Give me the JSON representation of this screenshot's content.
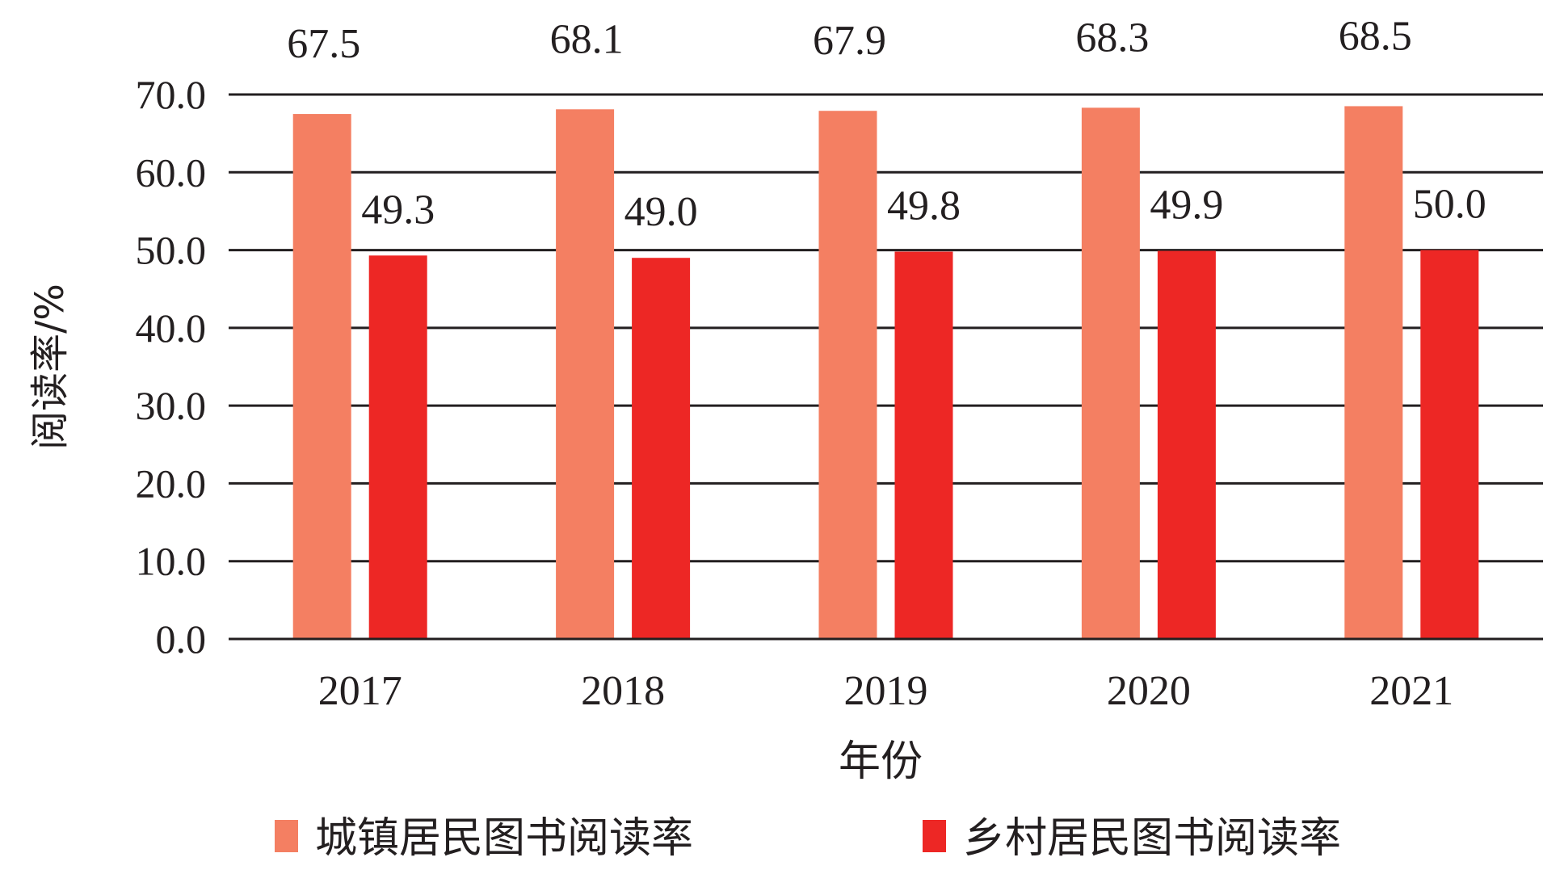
{
  "chart_data": {
    "type": "bar",
    "title": "",
    "xlabel": "年份",
    "ylabel": "阅读率/%",
    "categories": [
      "2017",
      "2018",
      "2019",
      "2020",
      "2021"
    ],
    "series": [
      {
        "name": "城镇居民图书阅读率",
        "color": "#f47f62",
        "values": [
          67.5,
          68.1,
          67.9,
          68.3,
          68.5
        ],
        "labels": [
          "67.5",
          "68.1",
          "67.9",
          "68.3",
          "68.5"
        ]
      },
      {
        "name": "乡村居民图书阅读率",
        "color": "#ed2725",
        "values": [
          49.3,
          49.0,
          49.8,
          49.9,
          50.0
        ],
        "labels": [
          "49.3",
          "49.0",
          "49.8",
          "49.9",
          "50.0"
        ]
      }
    ],
    "ylim": [
      0,
      70
    ],
    "yticks": [
      "0.0",
      "10.0",
      "20.0",
      "30.0",
      "40.0",
      "50.0",
      "60.0",
      "70.0"
    ],
    "ytick_values": [
      0,
      10,
      20,
      30,
      40,
      50,
      60,
      70
    ],
    "grid": true,
    "legend_position": "bottom"
  }
}
